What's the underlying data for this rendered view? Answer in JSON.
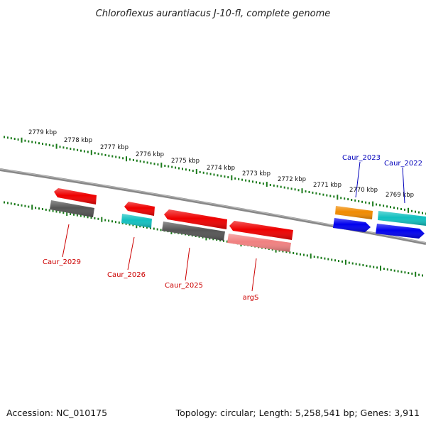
{
  "title": "Chloroflexus aurantiacus J-10-fl, complete genome",
  "footer": {
    "accession": "Accession: NC_010175",
    "summary": "Topology: circular; Length: 5,258,541 bp; Genes: 3,911"
  },
  "colors": {
    "tick": "#1a7a1a",
    "backbone": "#777777",
    "red": "#ee0000",
    "grey": "#555555",
    "cyan": "#11c0c0",
    "orange": "#f08a00",
    "blue": "#0000ee",
    "pink": "#f08080",
    "label_red": "#cc0000",
    "label_blue": "#0000bb"
  },
  "ruler": {
    "labels": [
      "2779 kbp",
      "2778 kbp",
      "2777 kbp",
      "2776 kbp",
      "2775 kbp",
      "2774 kbp",
      "2773 kbp",
      "2772 kbp",
      "2771 kbp",
      "2770 kbp",
      "2769 kbp"
    ]
  },
  "gene_labels": [
    {
      "text": "Caur_2029",
      "color": "red"
    },
    {
      "text": "Caur_2026",
      "color": "red"
    },
    {
      "text": "Caur_2025",
      "color": "red"
    },
    {
      "text": "argS",
      "color": "red"
    },
    {
      "text": "Caur_2023",
      "color": "blue"
    },
    {
      "text": "Caur_2022",
      "color": "blue"
    }
  ]
}
